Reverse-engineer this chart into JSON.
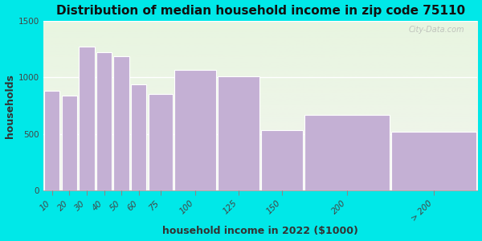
{
  "title": "Distribution of median household income in zip code 75110",
  "xlabel": "household income in 2022 ($1000)",
  "ylabel": "households",
  "categories": [
    "10",
    "20",
    "30",
    "40",
    "50",
    "60",
    "75",
    "100",
    "125",
    "150",
    "200",
    "> 200"
  ],
  "values": [
    880,
    840,
    1270,
    1220,
    1190,
    940,
    850,
    1065,
    1010,
    535,
    670,
    520
  ],
  "bar_lefts": [
    0,
    10,
    20,
    30,
    40,
    50,
    60,
    75,
    100,
    125,
    150,
    200
  ],
  "bar_widths": [
    10,
    10,
    10,
    10,
    10,
    10,
    15,
    25,
    25,
    25,
    50,
    50
  ],
  "tick_positions": [
    5,
    15,
    25,
    35,
    45,
    55,
    67.5,
    87.5,
    112.5,
    137.5,
    175,
    225
  ],
  "bar_color": "#c4b0d4",
  "bar_edge_color": "#ffffff",
  "background_outer": "#00e8e8",
  "background_plot_top": "#e8f5e0",
  "background_plot_bottom": "#f2f5ee",
  "ylim": [
    0,
    1500
  ],
  "xlim": [
    0,
    250
  ],
  "yticks": [
    0,
    500,
    1000,
    1500
  ],
  "title_fontsize": 11,
  "label_fontsize": 9,
  "tick_fontsize": 7.5,
  "watermark_text": "City-Data.com"
}
